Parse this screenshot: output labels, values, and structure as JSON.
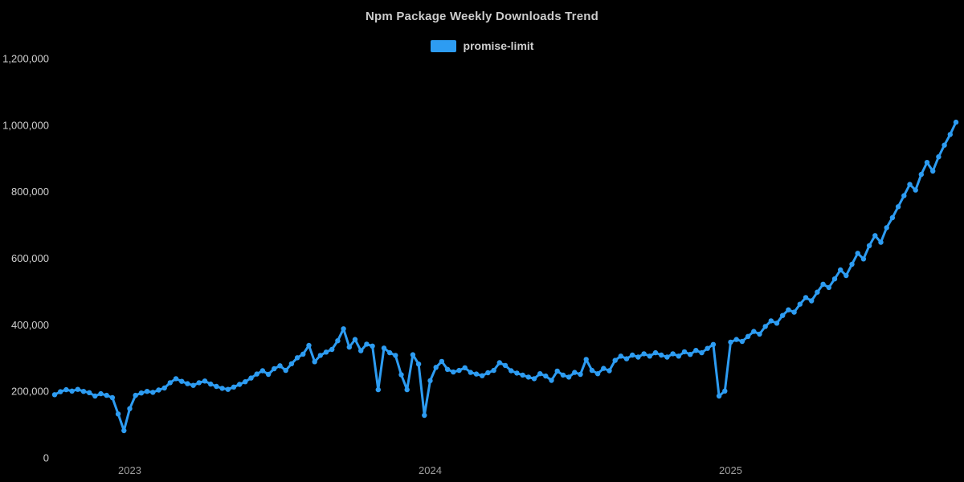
{
  "title": "Npm Package Weekly Downloads Trend",
  "legend": {
    "label": "promise-limit",
    "color": "#2d9cf2"
  },
  "colors": {
    "background": "#000000",
    "line": "#2d9cf2",
    "title_text": "#cccccc",
    "y_axis_text": "#cfcfcf",
    "x_axis_text": "#9e9e9e"
  },
  "chart_data": {
    "type": "line",
    "title": "Npm Package Weekly Downloads Trend",
    "xlabel": "",
    "ylabel": "",
    "ylim": [
      0,
      1200000
    ],
    "grid": false,
    "marker": true,
    "legend_position": "top",
    "x_tick_labels": [
      "2023",
      "2024",
      "2025"
    ],
    "x_tick_indices": [
      13,
      65,
      117
    ],
    "y_ticks": [
      0,
      200000,
      400000,
      600000,
      800000,
      1000000,
      1200000
    ],
    "y_tick_labels": [
      "0",
      "200,000",
      "400,000",
      "600,000",
      "800,000",
      "1,000,000",
      "1,200,000"
    ],
    "series": [
      {
        "name": "promise-limit",
        "values": [
          190000,
          199000,
          205000,
          201000,
          206000,
          200000,
          196000,
          186000,
          193000,
          188000,
          181000,
          132000,
          82000,
          148000,
          188000,
          195000,
          200000,
          197000,
          204000,
          210000,
          226000,
          238000,
          230000,
          223000,
          218000,
          226000,
          231000,
          222000,
          215000,
          209000,
          206000,
          213000,
          221000,
          229000,
          240000,
          252000,
          262000,
          251000,
          268000,
          277000,
          263000,
          283000,
          301000,
          312000,
          338000,
          289000,
          308000,
          318000,
          326000,
          352000,
          388000,
          333000,
          356000,
          322000,
          342000,
          336000,
          205000,
          330000,
          316000,
          308000,
          250000,
          205000,
          310000,
          282000,
          128000,
          232000,
          272000,
          290000,
          266000,
          258000,
          263000,
          271000,
          257000,
          252000,
          247000,
          256000,
          263000,
          286000,
          278000,
          262000,
          255000,
          249000,
          243000,
          238000,
          253000,
          246000,
          233000,
          261000,
          249000,
          243000,
          257000,
          251000,
          296000,
          263000,
          253000,
          269000,
          262000,
          293000,
          306000,
          298000,
          309000,
          303000,
          313000,
          306000,
          316000,
          309000,
          303000,
          313000,
          306000,
          319000,
          311000,
          323000,
          316000,
          329000,
          341000,
          186000,
          201000,
          348000,
          356000,
          350000,
          365000,
          380000,
          372000,
          395000,
          412000,
          405000,
          428000,
          445000,
          438000,
          462000,
          482000,
          472000,
          498000,
          522000,
          512000,
          538000,
          565000,
          548000,
          582000,
          615000,
          598000,
          638000,
          668000,
          648000,
          692000,
          722000,
          755000,
          788000,
          822000,
          805000,
          852000,
          888000,
          862000,
          905000,
          940000,
          972000,
          1009000
        ]
      }
    ]
  }
}
